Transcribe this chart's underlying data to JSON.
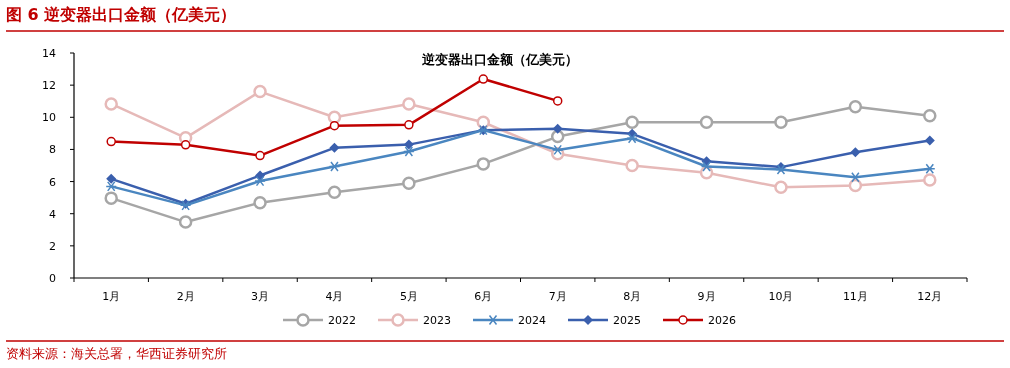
{
  "chart_data": {
    "type": "line",
    "title": "图 6 逆变器出口金额（亿美元）",
    "subtitle": "逆变器出口金额（亿美元）",
    "annotations": [
      "资料来源：海关总署，华西证券研究所"
    ],
    "categories": [
      "1月",
      "2月",
      "3月",
      "4月",
      "5月",
      "6月",
      "7月",
      "8月",
      "9月",
      "10月",
      "11月",
      "12月"
    ],
    "ylim": [
      0,
      14
    ],
    "yticks": [
      0,
      2,
      4,
      6,
      8,
      10,
      12,
      14
    ],
    "grid": false,
    "legend": "bottom",
    "series": [
      {
        "name": "2022",
        "color": "#a6a6a6",
        "marker": "circle",
        "values": [
          4.97,
          3.48,
          4.68,
          5.34,
          5.9,
          7.1,
          8.8,
          9.69,
          9.69,
          9.69,
          10.65,
          10.1
        ]
      },
      {
        "name": "2023",
        "color": "#e6b9b8",
        "marker": "circle",
        "values": [
          10.83,
          8.72,
          11.6,
          10.0,
          10.83,
          9.69,
          7.73,
          7.0,
          6.55,
          5.65,
          5.76,
          6.1
        ]
      },
      {
        "name": "2024",
        "color": "#4a86c0",
        "marker": "cross",
        "values": [
          5.7,
          4.52,
          6.03,
          6.94,
          7.87,
          9.2,
          7.97,
          8.7,
          6.94,
          6.75,
          6.27,
          6.8
        ]
      },
      {
        "name": "2025",
        "color": "#3a5fad",
        "marker": "diamond",
        "values": [
          6.17,
          4.62,
          6.38,
          8.1,
          8.3,
          9.2,
          9.28,
          8.97,
          7.27,
          6.9,
          7.83,
          8.55
        ]
      },
      {
        "name": "2026",
        "color": "#c00000",
        "marker": "small_circle",
        "values": [
          8.49,
          8.29,
          7.62,
          9.48,
          9.53,
          12.38,
          11.02,
          null,
          null,
          null,
          null,
          null
        ]
      }
    ]
  }
}
